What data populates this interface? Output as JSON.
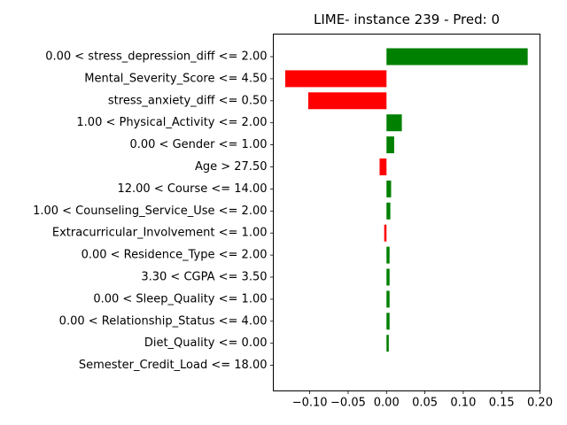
{
  "chart_data": {
    "type": "bar",
    "orientation": "horizontal",
    "title": "LIME- instance 239 - Pred: 0",
    "xlabel": "",
    "ylabel": "",
    "xlim": [
      -0.1475,
      0.2
    ],
    "x_ticks": [
      {
        "value": -0.1,
        "label": "−0.10"
      },
      {
        "value": -0.05,
        "label": "−0.05"
      },
      {
        "value": 0.0,
        "label": "0.00"
      },
      {
        "value": 0.05,
        "label": "0.05"
      },
      {
        "value": 0.1,
        "label": "0.10"
      },
      {
        "value": 0.15,
        "label": "0.15"
      },
      {
        "value": 0.2,
        "label": "0.20"
      }
    ],
    "grid": false,
    "colors": {
      "positive": "#008000",
      "negative": "#ff0000",
      "axis": "#000000"
    },
    "categories": [
      "0.00 < stress_depression_diff <= 2.00",
      "Mental_Severity_Score <= 4.50",
      "stress_anxiety_diff <= 0.50",
      "1.00 < Physical_Activity <= 2.00",
      "0.00 < Gender <= 1.00",
      "Age > 27.50",
      "12.00 < Course <= 14.00",
      "1.00 < Counseling_Service_Use <= 2.00",
      "Extracurricular_Involvement <= 1.00",
      "0.00 < Residence_Type <= 2.00",
      "3.30 < CGPA <= 3.50",
      "0.00 < Sleep_Quality <= 1.00",
      "0.00 < Relationship_Status <= 4.00",
      "Diet_Quality <= 0.00",
      "Semester_Credit_Load <= 18.00"
    ],
    "values": [
      0.184,
      -0.132,
      -0.102,
      0.02,
      0.01,
      -0.009,
      0.006,
      0.005,
      -0.003,
      0.004,
      0.004,
      0.004,
      0.004,
      0.003,
      0.0
    ]
  }
}
